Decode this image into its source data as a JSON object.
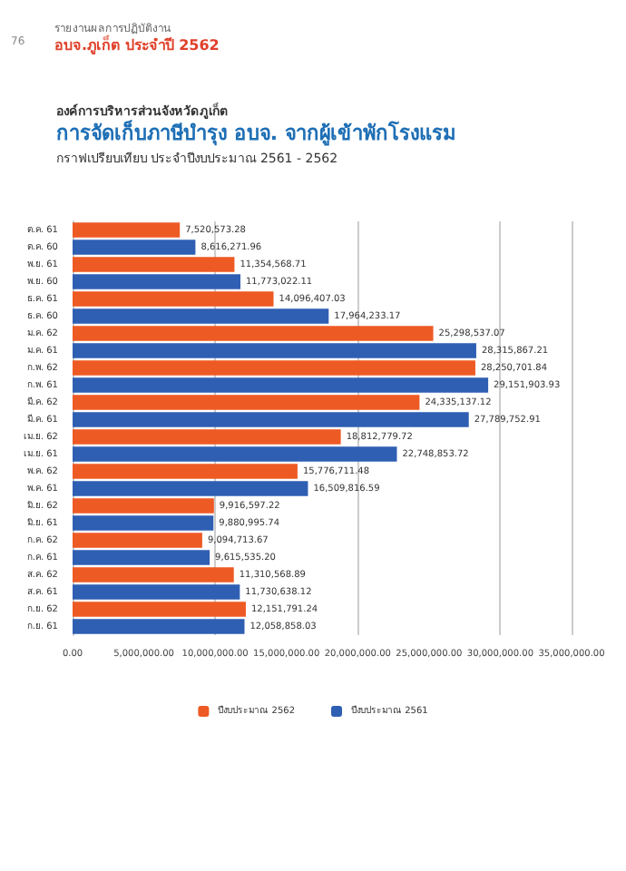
{
  "chart_data": {
    "type": "bar",
    "orientation": "horizontal",
    "subtitle": "องค์การบริหารส่วนจังหวัดภูเก็ต",
    "title": "การจัดเก็บภาษีบำรุง อบจ. จากผู้เข้าพักโรงแรม",
    "xlabel": "กราฟเปรียบเทียบ ประจำปีงบประมาณ 2561 - 2562",
    "annotations": [
      "76",
      "รายงานผลการปฏิบัติงาน",
      "อบจ.ภูเก็ต ประจำปี 2562"
    ],
    "categories": [
      "ต.ค. 61",
      "ต.ค. 60",
      "พ.ย. 61",
      "พ.ย. 60",
      "ธ.ค. 61",
      "ธ.ค. 60",
      "ม.ค. 62",
      "ม.ค. 61",
      "ก.พ. 62",
      "ก.พ. 61",
      "มี.ค. 62",
      "มี.ค. 61",
      "เม.ย. 62",
      "เม.ย. 61",
      "พ.ค. 62",
      "พ.ค. 61",
      "มิ.ย. 62",
      "มิ.ย. 61",
      "ก.ค. 62",
      "ก.ค. 61",
      "ส.ค. 62",
      "ส.ค. 61",
      "ก.ย. 62",
      "ก.ย. 61"
    ],
    "series": [
      {
        "name": "ปีงบประมาณ 2562",
        "color": "#ee5a24",
        "values": [
          7520573.28,
          null,
          11354568.71,
          null,
          14096407.03,
          null,
          25298537.07,
          null,
          28250701.84,
          null,
          24335137.12,
          null,
          18812779.72,
          null,
          15776711.48,
          null,
          9916597.22,
          null,
          9094713.67,
          null,
          11310568.89,
          null,
          12151791.24,
          null
        ],
        "value_labels": [
          "7,520,573.28",
          null,
          "11,354,568.71",
          null,
          "14,096,407.03",
          null,
          "25,298,537.07",
          null,
          "28,250,701.84",
          null,
          "24,335,137.12",
          null,
          "18,812,779.72",
          null,
          "15,776,711.48",
          null,
          "9,916,597.22",
          null,
          "9,094,713.67",
          null,
          "11,310,568.89",
          null,
          "12,151,791.24",
          null
        ]
      },
      {
        "name": "ปีงบประมาณ 2561",
        "color": "#2f5fb3",
        "values": [
          null,
          8616271.96,
          null,
          11773022.11,
          null,
          17964233.17,
          null,
          28315867.21,
          null,
          29151903.93,
          null,
          27789752.91,
          null,
          22748853.72,
          null,
          16509816.59,
          null,
          9880995.74,
          null,
          9615535.2,
          null,
          11730638.12,
          null,
          12058858.03
        ],
        "value_labels": [
          null,
          "8,616,271.96",
          null,
          "11,773,022.11",
          null,
          "17,964,233.17",
          null,
          "28,315,867.21",
          null,
          "29,151,903.93",
          null,
          "27,789,752.91",
          null,
          "22,748,853.72",
          null,
          "16,509,816.59",
          null,
          "9,880,995.74",
          null,
          "9,615,535.20",
          null,
          "11,730,638.12",
          null,
          "12,058,858.03"
        ]
      }
    ],
    "xlim": [
      0,
      35000000
    ],
    "xticks": [
      {
        "value": 0,
        "label": "0.00"
      },
      {
        "value": 5000000,
        "label": "5,000,000.00"
      },
      {
        "value": 10000000,
        "label": "10,000,000.00"
      },
      {
        "value": 15000000,
        "label": "15,000,000.00"
      },
      {
        "value": 20000000,
        "label": "20,000,000.00"
      },
      {
        "value": 25000000,
        "label": "25,000,000.00"
      },
      {
        "value": 30000000,
        "label": "30,000,000.00"
      },
      {
        "value": 35000000,
        "label": "35,000,000.00"
      }
    ],
    "grid": "x",
    "legend": "bottom"
  }
}
